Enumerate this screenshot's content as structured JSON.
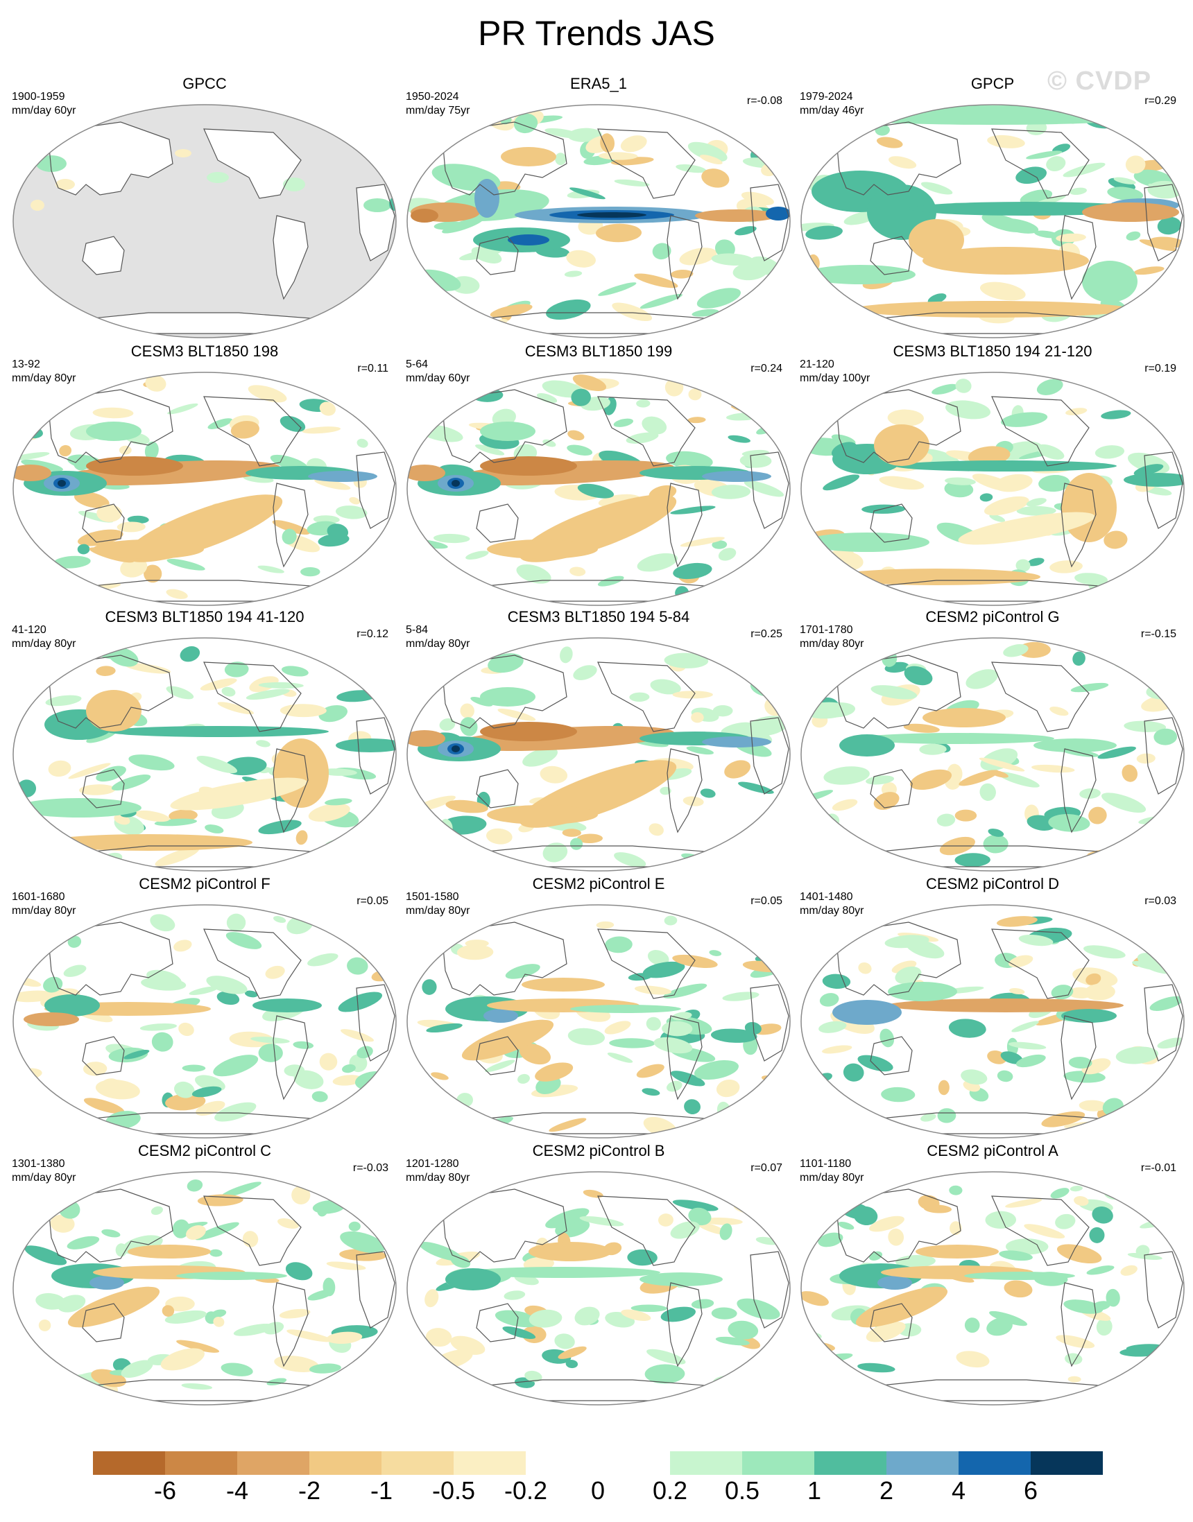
{
  "figure": {
    "title": "PR Trends JAS",
    "watermark": "© CVDP"
  },
  "colors": {
    "land_missing": "#e2e2e2",
    "coast": "#555555",
    "frame": "#888888"
  },
  "panels": [
    {
      "title": "GPCC",
      "years": "1900-1959",
      "units": "mm/day 60yr",
      "corr": "",
      "style": "gpcc"
    },
    {
      "title": "ERA5_1",
      "years": "1950-2024",
      "units": "mm/day 75yr",
      "corr": "r=-0.08",
      "style": "era5"
    },
    {
      "title": "GPCP",
      "years": "1979-2024",
      "units": "mm/day 46yr",
      "corr": "r=0.29",
      "style": "gpcp"
    },
    {
      "title": "CESM3 BLT1850 198",
      "years": "13-92",
      "units": "mm/day 80yr",
      "corr": "r=0.11",
      "style": "dry-pac-wet-io"
    },
    {
      "title": "CESM3 BLT1850 199",
      "years": "5-64",
      "units": "mm/day 60yr",
      "corr": "r=0.24",
      "style": "dry-pac-wet-io"
    },
    {
      "title": "CESM3 BLT1850 194 21-120",
      "years": "21-120",
      "units": "mm/day 100yr",
      "corr": "r=0.19",
      "style": "wet-itcz"
    },
    {
      "title": "CESM3 BLT1850 194 41-120",
      "years": "41-120",
      "units": "mm/day 80yr",
      "corr": "r=0.12",
      "style": "wet-itcz"
    },
    {
      "title": "CESM3 BLT1850 194 5-84",
      "years": "5-84",
      "units": "mm/day 80yr",
      "corr": "r=0.25",
      "style": "dry-pac-wet-io"
    },
    {
      "title": "CESM2 piControl G",
      "years": "1701-1780",
      "units": "mm/day 80yr",
      "corr": "r=-0.15",
      "style": "weak"
    },
    {
      "title": "CESM2 piControl F",
      "years": "1601-1680",
      "units": "mm/day 80yr",
      "corr": "r=0.05",
      "style": "weak-dry"
    },
    {
      "title": "CESM2 piControl E",
      "years": "1501-1580",
      "units": "mm/day 80yr",
      "corr": "r=0.05",
      "style": "wet-wp"
    },
    {
      "title": "CESM2 piControl D",
      "years": "1401-1480",
      "units": "mm/day 80yr",
      "corr": "r=0.03",
      "style": "dry-itcz"
    },
    {
      "title": "CESM2 piControl C",
      "years": "1301-1380",
      "units": "mm/day 80yr",
      "corr": "r=-0.03",
      "style": "wet-wp"
    },
    {
      "title": "CESM2 piControl B",
      "years": "1201-1280",
      "units": "mm/day 80yr",
      "corr": "r=0.07",
      "style": "weak"
    },
    {
      "title": "CESM2 piControl A",
      "years": "1101-1180",
      "units": "mm/day 80yr",
      "corr": "r=-0.01",
      "style": "wet-wp"
    }
  ],
  "colorbar": {
    "labels": [
      "-6",
      "-4",
      "-2",
      "-1",
      "-0.5",
      "-0.2",
      "0",
      "0.2",
      "0.5",
      "1",
      "2",
      "4",
      "6"
    ],
    "colors": [
      "#b5692b",
      "#cc8745",
      "#dfa565",
      "#f1c983",
      "#f6dc9f",
      "#fbefc3",
      "#ffffff",
      "#ffffff",
      "#c8f5cf",
      "#9de8bb",
      "#50bd9e",
      "#6ea9cb",
      "#1466ad",
      "#06365a"
    ]
  }
}
